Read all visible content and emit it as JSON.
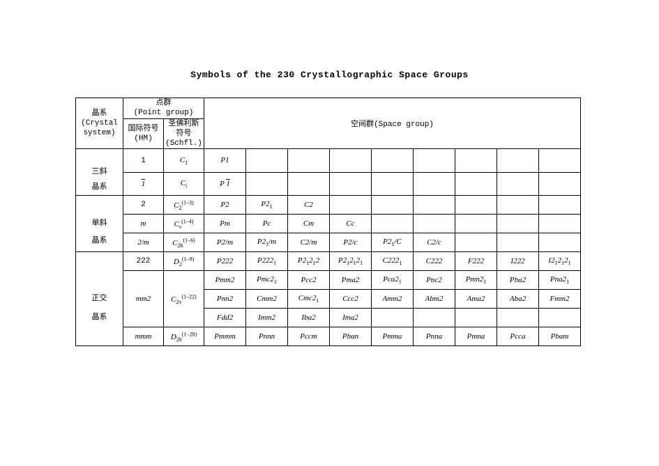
{
  "title": "Symbols of the 230 Crystallographic Space Groups",
  "headers": {
    "crystal_system": "晶系\n(Crystal\nsystem)",
    "point_group": "点群\n(Point group)",
    "hm": "国际符号\n(HM)",
    "schfl": "圣佛利斯\n符号\n(Schfl.)",
    "space_group": "空间群(Space group)"
  },
  "systems": {
    "triclinic": "三斜\n晶系",
    "monoclinic": "单斜\n晶系",
    "orthorhombic": "正交\n晶系"
  },
  "rows": [
    {
      "hm": "1",
      "sch": {
        "base": "C",
        "sub": "1",
        "sup": ""
      },
      "cells": [
        "P1",
        "",
        "",
        "",
        "",
        "",
        "",
        "",
        ""
      ]
    },
    {
      "hm": "1̄",
      "sch": {
        "base": "C",
        "sub": "i",
        "sup": ""
      },
      "cells": [
        "P 1̄",
        "",
        "",
        "",
        "",
        "",
        "",
        "",
        ""
      ]
    },
    {
      "hm": "2",
      "sch": {
        "base": "C",
        "sub": "2",
        "sup": "(1–3)"
      },
      "cells": [
        "P2",
        "P2₁",
        "C2",
        "",
        "",
        "",
        "",
        "",
        ""
      ]
    },
    {
      "hm": "m",
      "sch": {
        "base": "C",
        "sub": "s",
        "sup": "(1–4)"
      },
      "cells": [
        "Pm",
        "Pc",
        "Cm",
        "Cc",
        "",
        "",
        "",
        "",
        ""
      ]
    },
    {
      "hm": "2/m",
      "sch": {
        "base": "C",
        "sub": "2h",
        "sup": "(1–6)"
      },
      "cells": [
        "P2/m",
        "P2₁/m",
        "C2/m",
        "P2/c",
        "P2₁/C",
        "C2/c",
        "",
        "",
        ""
      ]
    },
    {
      "hm": "222",
      "sch": {
        "base": "D",
        "sub": "2",
        "sup": "(1–9)"
      },
      "cells": [
        "P222",
        "P222₁",
        "P2₁2₁2",
        "P2₁2₁2₁",
        "C222₁",
        "C222",
        "F222",
        "I222",
        "I2₁2₁2₁"
      ]
    },
    {
      "hm": "",
      "sch": null,
      "cells": [
        "Pmm2",
        "Pmc2₁",
        "Pcc2",
        "Pma2",
        "Pca2₁",
        "Pnc2",
        "Pmn2₁",
        "Pba2",
        "Pna2₁"
      ]
    },
    {
      "hm": "mm2",
      "sch": {
        "base": "C",
        "sub": "2v",
        "sup": "(1–22)"
      },
      "cells": [
        "Pnn2",
        "Cmm2",
        "Cmc2₁",
        "Ccc2",
        "Amm2",
        "Abm2",
        "Ama2",
        "Aba2",
        "Fmm2"
      ]
    },
    {
      "hm": "",
      "sch": null,
      "cells": [
        "Fdd2",
        "Imm2",
        "Iba2",
        "Ima2",
        "",
        "",
        "",
        "",
        ""
      ]
    },
    {
      "hm": "mmm",
      "sch": {
        "base": "D",
        "sub": "2h",
        "sup": "(1–28)"
      },
      "cells": [
        "Pmmm",
        "Pnnn",
        "Pccm",
        "Pban",
        "Pmma",
        "Pnna",
        "Pmna",
        "Pcca",
        "Pbam"
      ]
    }
  ],
  "style": {
    "bg": "#ffffff",
    "fg": "#000000",
    "border": "#000000",
    "title_fontsize": 13,
    "body_fontsize": 11
  }
}
